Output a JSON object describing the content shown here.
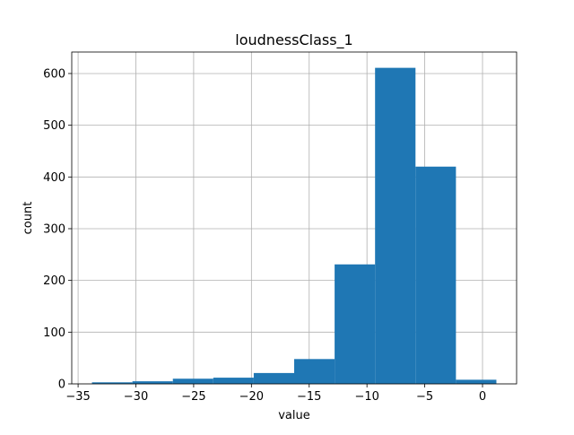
{
  "chart_data": {
    "type": "bar",
    "title": "loudnessClass_1",
    "xlabel": "value",
    "ylabel": "count",
    "grid": true,
    "bar_color": "#1f77b4",
    "bin_edges": [
      -33.8,
      -30.3,
      -26.8,
      -23.3,
      -19.8,
      -16.3,
      -12.8,
      -9.3,
      -5.8,
      -2.3,
      1.2
    ],
    "values": [
      3,
      5,
      10,
      12,
      21,
      48,
      231,
      611,
      420,
      8
    ],
    "xlim": [
      -35.55,
      2.95
    ],
    "ylim": [
      0,
      641.55
    ],
    "x_ticks": [
      -35,
      -30,
      -25,
      -20,
      -15,
      -10,
      -5,
      0
    ],
    "x_tick_labels": [
      "−35",
      "−30",
      "−25",
      "−20",
      "−15",
      "−10",
      "−5",
      "0"
    ],
    "y_ticks": [
      0,
      100,
      200,
      300,
      400,
      500,
      600
    ],
    "y_tick_labels": [
      "0",
      "100",
      "200",
      "300",
      "400",
      "500",
      "600"
    ]
  }
}
